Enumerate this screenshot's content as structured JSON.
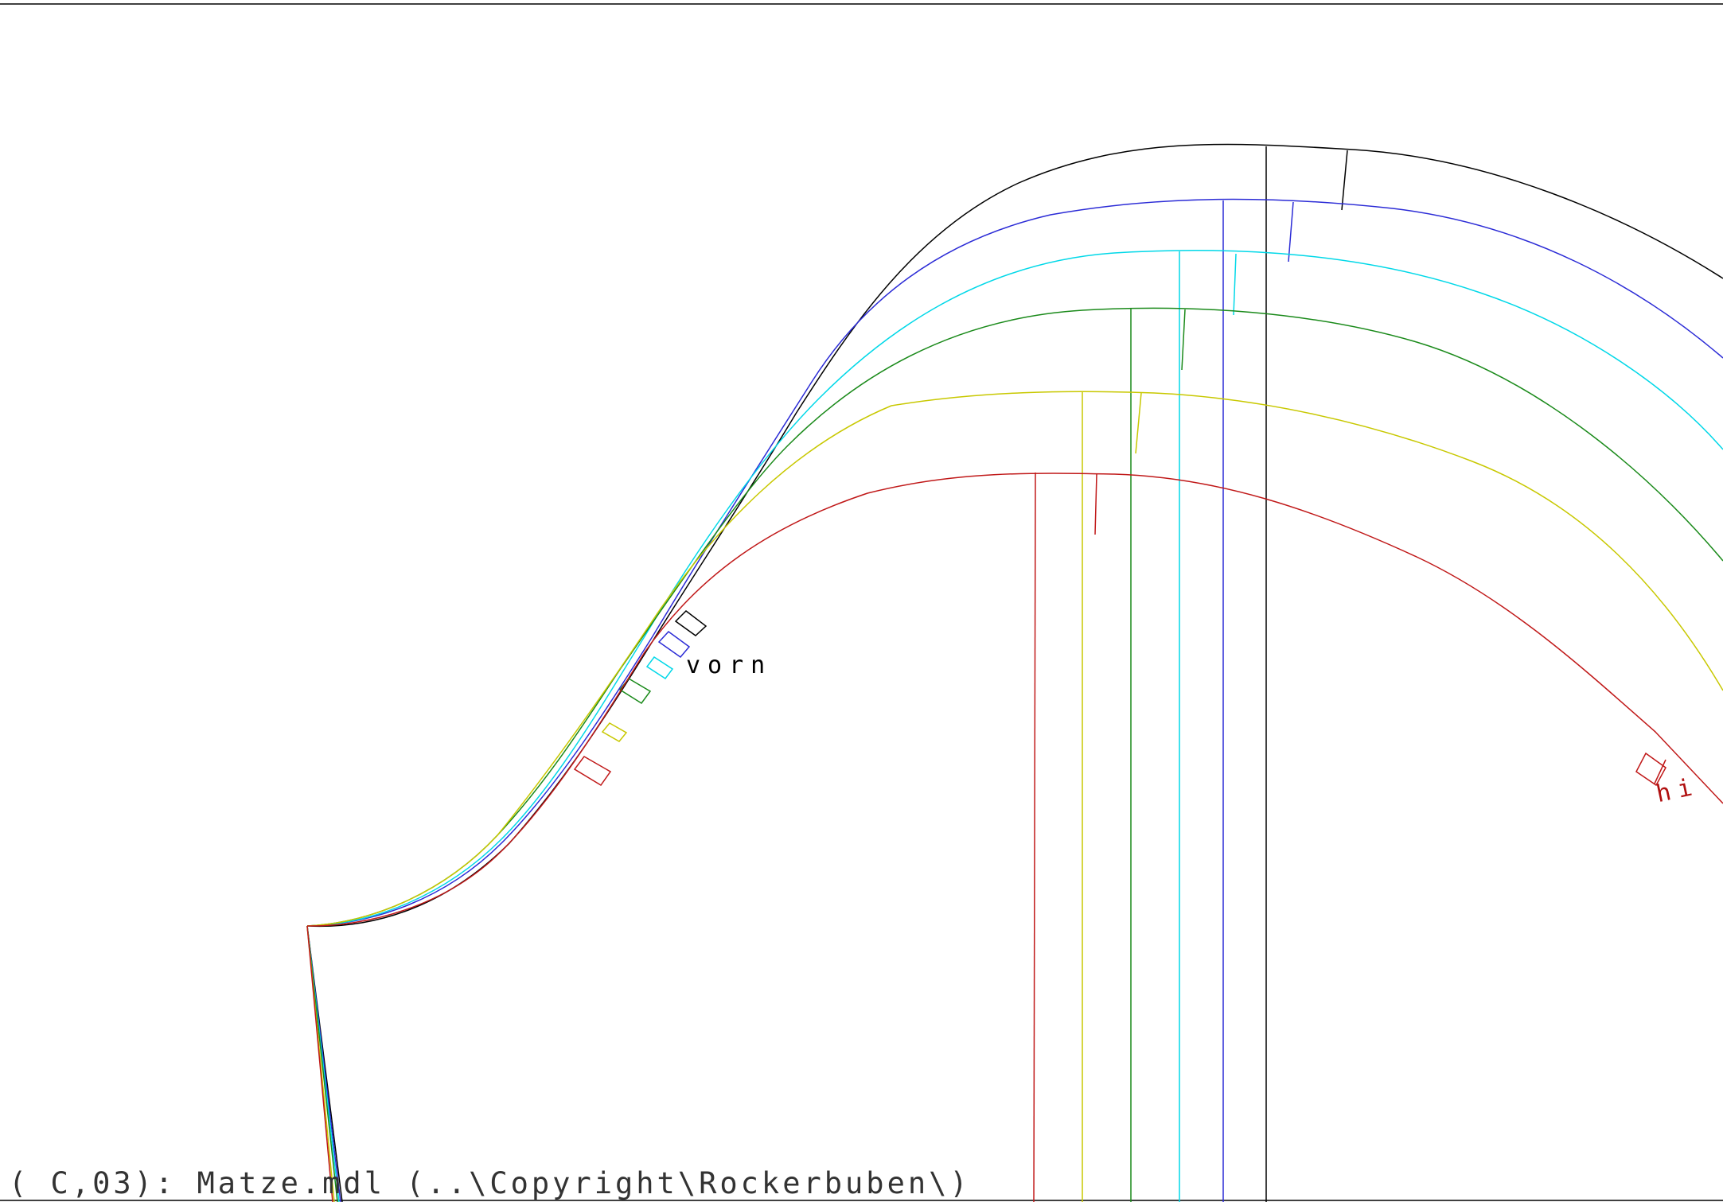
{
  "status_line": "( C,03): Matze.mdl (..\\Copyright\\Rockerbuben\\)",
  "labels": {
    "front": "vorn",
    "back": "hi"
  },
  "sizes": [
    {
      "id": "size-black",
      "color": "#000000"
    },
    {
      "id": "size-blue",
      "color": "#2b2bd6"
    },
    {
      "id": "size-cyan",
      "color": "#00d8e8"
    },
    {
      "id": "size-green",
      "color": "#1a8a1a"
    },
    {
      "id": "size-yellow",
      "color": "#c8c800"
    },
    {
      "id": "size-red",
      "color": "#c01818"
    }
  ],
  "frame_color": "#000000"
}
